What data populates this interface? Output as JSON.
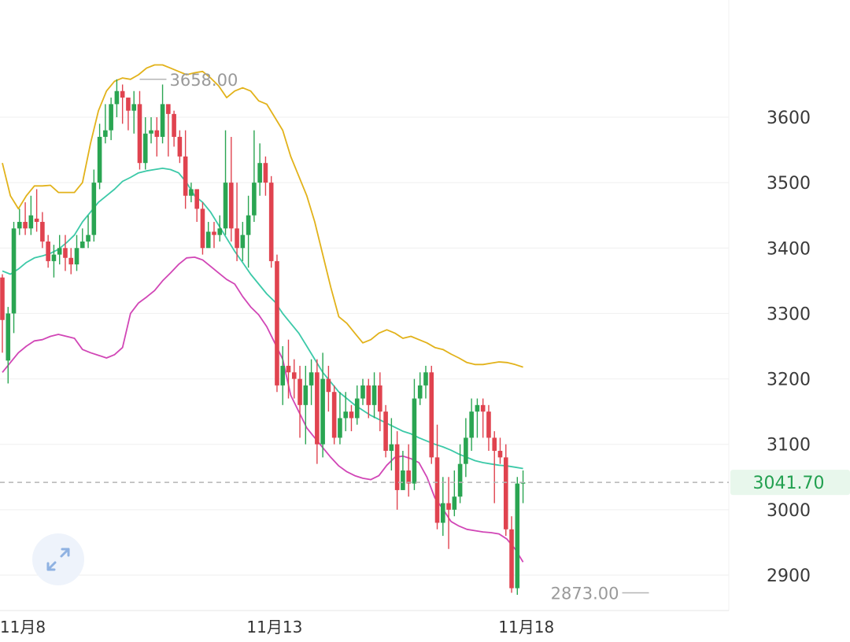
{
  "chart_data": {
    "type": "candlestick",
    "indicator": "bollinger",
    "colors": {
      "up": "#2aa552",
      "down": "#e0434f",
      "upper_band": "#e2b21a",
      "middle_band": "#3cc9a8",
      "lower_band": "#d146b6",
      "current_price_bg": "#e8f7ec",
      "current_price_text": "#22a050",
      "grid": "#efefef",
      "dashed_line": "#b5b5b5"
    },
    "y_ticks": [
      2900,
      3000,
      3100,
      3200,
      3300,
      3400,
      3500,
      3600
    ],
    "y_tick_labels": [
      "2900",
      "3000",
      "3100",
      "3200",
      "3300",
      "3400",
      "3500",
      "3600"
    ],
    "ylim": [
      2849,
      3757
    ],
    "x_labels": [
      {
        "index": 0,
        "label": "11月8"
      },
      {
        "index": 44,
        "label": "11月13"
      },
      {
        "index": 88,
        "label": "11月18"
      }
    ],
    "high_annotation": {
      "index": 24,
      "value": 3658.0,
      "label": "3658.00"
    },
    "low_annotation": {
      "index": 113,
      "value": 2873.0,
      "label": "2873.00"
    },
    "current_price": {
      "value": 3041.7,
      "label": "3041.70"
    },
    "expand_icon": "expand-icon",
    "candles": [
      [
        3355,
        3290,
        3360,
        3240
      ],
      [
        3228,
        3300,
        3310,
        3193
      ],
      [
        3300,
        3430,
        3440,
        3270
      ],
      [
        3430,
        3440,
        3460,
        3420
      ],
      [
        3440,
        3430,
        3470,
        3420
      ],
      [
        3430,
        3450,
        3480,
        3420
      ],
      [
        3445,
        3440,
        3490,
        3425
      ],
      [
        3440,
        3410,
        3455,
        3400
      ],
      [
        3410,
        3380,
        3420,
        3370
      ],
      [
        3380,
        3390,
        3405,
        3355
      ],
      [
        3390,
        3400,
        3420,
        3375
      ],
      [
        3400,
        3385,
        3420,
        3365
      ],
      [
        3385,
        3375,
        3400,
        3360
      ],
      [
        3375,
        3400,
        3420,
        3365
      ],
      [
        3400,
        3410,
        3430,
        3400
      ],
      [
        3410,
        3420,
        3450,
        3400
      ],
      [
        3420,
        3500,
        3520,
        3410
      ],
      [
        3500,
        3570,
        3590,
        3490
      ],
      [
        3570,
        3580,
        3620,
        3560
      ],
      [
        3580,
        3620,
        3630,
        3565
      ],
      [
        3620,
        3640,
        3658,
        3600
      ],
      [
        3640,
        3630,
        3650,
        3590
      ],
      [
        3630,
        3610,
        3630,
        3580
      ],
      [
        3610,
        3620,
        3640,
        3575
      ],
      [
        3620,
        3530,
        3640,
        3520
      ],
      [
        3530,
        3575,
        3600,
        3520
      ],
      [
        3575,
        3580,
        3600,
        3560
      ],
      [
        3580,
        3570,
        3600,
        3540
      ],
      [
        3570,
        3620,
        3650,
        3560
      ],
      [
        3620,
        3605,
        3610,
        3540
      ],
      [
        3605,
        3570,
        3610,
        3555
      ],
      [
        3570,
        3540,
        3580,
        3530
      ],
      [
        3540,
        3480,
        3580,
        3460
      ],
      [
        3480,
        3490,
        3500,
        3470
      ],
      [
        3490,
        3460,
        3490,
        3440
      ],
      [
        3460,
        3400,
        3470,
        3390
      ],
      [
        3400,
        3425,
        3440,
        3410
      ],
      [
        3425,
        3420,
        3440,
        3400
      ],
      [
        3420,
        3430,
        3450,
        3410
      ],
      [
        3430,
        3500,
        3580,
        3420
      ],
      [
        3500,
        3430,
        3570,
        3410
      ],
      [
        3430,
        3400,
        3500,
        3380
      ],
      [
        3400,
        3420,
        3440,
        3380
      ],
      [
        3420,
        3450,
        3480,
        3370
      ],
      [
        3450,
        3500,
        3580,
        3440
      ],
      [
        3500,
        3530,
        3560,
        3480
      ],
      [
        3530,
        3500,
        3540,
        3480
      ],
      [
        3500,
        3380,
        3510,
        3370
      ],
      [
        3380,
        3190,
        3390,
        3180
      ],
      [
        3190,
        3220,
        3250,
        3160
      ],
      [
        3220,
        3210,
        3260,
        3170
      ],
      [
        3210,
        3200,
        3230,
        3170
      ],
      [
        3200,
        3160,
        3220,
        3110
      ],
      [
        3160,
        3190,
        3220,
        3100
      ],
      [
        3190,
        3210,
        3230,
        3160
      ],
      [
        3210,
        3100,
        3230,
        3070
      ],
      [
        3100,
        3200,
        3240,
        3080
      ],
      [
        3200,
        3180,
        3220,
        3150
      ],
      [
        3180,
        3110,
        3190,
        3100
      ],
      [
        3110,
        3140,
        3180,
        3100
      ],
      [
        3140,
        3150,
        3180,
        3120
      ],
      [
        3150,
        3140,
        3160,
        3120
      ],
      [
        3140,
        3170,
        3190,
        3130
      ],
      [
        3170,
        3190,
        3200,
        3160
      ],
      [
        3190,
        3160,
        3200,
        3140
      ],
      [
        3160,
        3190,
        3210,
        3140
      ],
      [
        3190,
        3150,
        3210,
        3120
      ],
      [
        3150,
        3090,
        3160,
        3080
      ],
      [
        3090,
        3100,
        3140,
        3060
      ],
      [
        3100,
        3030,
        3120,
        3000
      ],
      [
        3030,
        3060,
        3090,
        3030
      ],
      [
        3060,
        3040,
        3100,
        3020
      ],
      [
        3040,
        3170,
        3200,
        3030
      ],
      [
        3170,
        3190,
        3210,
        3160
      ],
      [
        3190,
        3210,
        3220,
        3170
      ],
      [
        3210,
        3080,
        3220,
        3070
      ],
      [
        3080,
        2980,
        3130,
        2970
      ],
      [
        2980,
        3010,
        3050,
        2960
      ],
      [
        3010,
        3000,
        3050,
        2940
      ],
      [
        3000,
        3020,
        3060,
        2990
      ],
      [
        3020,
        3070,
        3100,
        3010
      ],
      [
        3070,
        3110,
        3140,
        3050
      ],
      [
        3110,
        3150,
        3170,
        3090
      ],
      [
        3150,
        3160,
        3170,
        3110
      ],
      [
        3160,
        3150,
        3170,
        3110
      ],
      [
        3150,
        3110,
        3160,
        3090
      ],
      [
        3110,
        3090,
        3120,
        3010
      ],
      [
        3090,
        3080,
        3110,
        3070
      ],
      [
        3080,
        2970,
        3100,
        2960
      ],
      [
        2970,
        2880,
        2990,
        2873
      ],
      [
        2880,
        3040,
        3050,
        2870
      ],
      [
        3040,
        3041.7,
        3060,
        3010
      ]
    ],
    "upper_band": [
      3530,
      3480,
      3460,
      3480,
      3495,
      3495,
      3496,
      3485,
      3485,
      3485,
      3500,
      3560,
      3610,
      3640,
      3655,
      3660,
      3658,
      3665,
      3675,
      3680,
      3680,
      3675,
      3670,
      3665,
      3668,
      3670,
      3660,
      3648,
      3630,
      3640,
      3645,
      3640,
      3625,
      3620,
      3600,
      3580,
      3540,
      3510,
      3480,
      3440,
      3390,
      3340,
      3295,
      3285,
      3270,
      3255,
      3260,
      3270,
      3275,
      3270,
      3262,
      3265,
      3260,
      3255,
      3248,
      3245,
      3238,
      3232,
      3225,
      3222,
      3222,
      3224,
      3226,
      3225,
      3222,
      3218
    ],
    "middle_band": [
      3365,
      3360,
      3368,
      3378,
      3385,
      3388,
      3392,
      3398,
      3408,
      3420,
      3440,
      3455,
      3470,
      3480,
      3490,
      3502,
      3508,
      3515,
      3518,
      3520,
      3522,
      3520,
      3515,
      3500,
      3480,
      3470,
      3455,
      3435,
      3415,
      3395,
      3378,
      3360,
      3345,
      3330,
      3318,
      3300,
      3285,
      3270,
      3250,
      3230,
      3210,
      3195,
      3180,
      3170,
      3160,
      3152,
      3144,
      3138,
      3132,
      3126,
      3120,
      3116,
      3110,
      3105,
      3100,
      3096,
      3091,
      3085,
      3080,
      3075,
      3072,
      3070,
      3068,
      3067,
      3065,
      3063
    ],
    "lower_band": [
      3210,
      3225,
      3240,
      3250,
      3258,
      3260,
      3265,
      3268,
      3265,
      3262,
      3245,
      3240,
      3236,
      3232,
      3237,
      3248,
      3300,
      3316,
      3325,
      3335,
      3350,
      3362,
      3375,
      3385,
      3386,
      3382,
      3372,
      3362,
      3352,
      3345,
      3326,
      3310,
      3298,
      3280,
      3255,
      3230,
      3175,
      3150,
      3125,
      3110,
      3095,
      3080,
      3067,
      3058,
      3052,
      3048,
      3046,
      3052,
      3068,
      3080,
      3082,
      3078,
      3072,
      3050,
      3018,
      3001,
      2982,
      2975,
      2970,
      2968,
      2966,
      2965,
      2963,
      2955,
      2940,
      2920
    ]
  }
}
